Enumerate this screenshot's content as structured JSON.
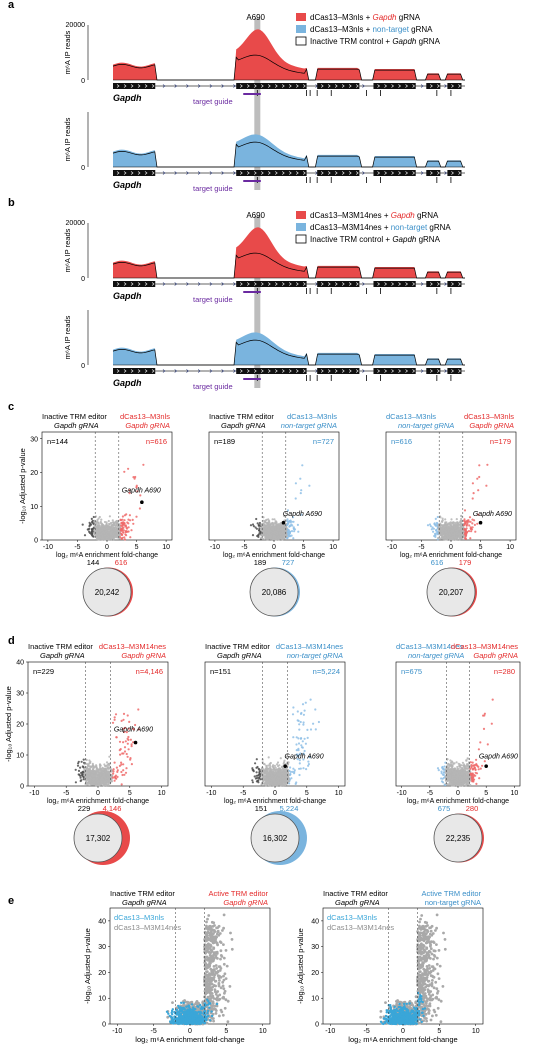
{
  "panels": {
    "a": {
      "letter": "a",
      "marker": "A690",
      "gene": "Gapdh",
      "guide": "target guide",
      "ylabel_top": "m⁶A IP reads",
      "ylabel_bottom": "m⁶A IP reads",
      "yticks_top": [
        "20000",
        "0"
      ],
      "yticks_bottom": [
        "20000",
        "0"
      ],
      "legend": [
        {
          "pre": "dCas13–M3nls + ",
          "em": "Gapdh",
          "post": " gRNA",
          "color": "#e84a4a",
          "emColor": "#e42b2b"
        },
        {
          "pre": "dCas13–M3nls + ",
          "em": "non-target",
          "post": " gRNA",
          "color": "#7ab4de",
          "emColor": "#3a8fc8"
        },
        {
          "pre": "Inactive TRM control + ",
          "em": "Gapdh",
          "post": " gRNA",
          "color": "#ffffff",
          "emColor": "#000000"
        }
      ]
    },
    "b": {
      "letter": "b",
      "marker": "A690",
      "gene": "Gapdh",
      "guide": "target guide",
      "ylabel_top": "m⁶A IP reads",
      "ylabel_bottom": "m⁶A IP reads",
      "yticks_top": [
        "20000",
        "0"
      ],
      "yticks_bottom": [
        "20000",
        "0"
      ],
      "legend": [
        {
          "pre": "dCas13–M3M14nes + ",
          "em": "Gapdh",
          "post": " gRNA",
          "color": "#e84a4a",
          "emColor": "#e42b2b"
        },
        {
          "pre": "dCas13–M3M14nes + ",
          "em": "non-target",
          "post": " gRNA",
          "color": "#7ab4de",
          "emColor": "#3a8fc8"
        },
        {
          "pre": "Inactive TRM control + ",
          "em": "Gapdh",
          "post": " gRNA",
          "color": "#ffffff",
          "emColor": "#000000"
        }
      ]
    },
    "c": {
      "letter": "c",
      "ylabel": "-log₁₀ Adjusted p-value",
      "xlabel": "log₂ m⁶A enrichment fold-change",
      "xticks": [
        "-10",
        "-5",
        "0",
        "5",
        "10"
      ],
      "yticks": [
        "0",
        "10",
        "20",
        "30"
      ],
      "plots": [
        {
          "left1": "Inactive TRM editor",
          "left2": "Gapdh gRNA",
          "right1": "dCas13–M3nls",
          "right2": "Gapdh gRNA",
          "nLeft": "n=144",
          "nRight": "n=616",
          "leftColor": "#444444",
          "rightColor": "#e42b2b",
          "leftTitleColor": "#000000",
          "rightTitleColor": "#e42b2b",
          "label": "Gapdh A690",
          "venn": {
            "left": "144",
            "right": "616",
            "center": "20,242"
          }
        },
        {
          "left1": "Inactive TRM editor",
          "left2": "Gapdh gRNA",
          "right1": "dCas13–M3nls",
          "right2": "non-target gRNA",
          "nLeft": "n=189",
          "nRight": "n=727",
          "leftColor": "#444444",
          "rightColor": "#3a8fc8",
          "leftTitleColor": "#000000",
          "rightTitleColor": "#3a8fc8",
          "label": "Gapdh A690",
          "venn": {
            "left": "189",
            "right": "727",
            "center": "20,086"
          }
        },
        {
          "left1": "dCas13–M3nls",
          "left2": "non-target gRNA",
          "right1": "dCas13–M3nls",
          "right2": "Gapdh gRNA",
          "nLeft": "n=616",
          "nRight": "n=179",
          "leftColor": "#3a8fc8",
          "rightColor": "#e42b2b",
          "leftTitleColor": "#3a8fc8",
          "rightTitleColor": "#e42b2b",
          "label": "Gapdh A690",
          "venn": {
            "left": "616",
            "right": "179",
            "center": "20,207"
          }
        }
      ]
    },
    "d": {
      "letter": "d",
      "ylabel": "-log₁₀ Adjusted p-value",
      "xlabel": "log₂ m⁶A enrichment fold-change",
      "xticks": [
        "-10",
        "-5",
        "0",
        "5",
        "10"
      ],
      "yticks": [
        "0",
        "10",
        "20",
        "30",
        "40"
      ],
      "plots": [
        {
          "left1": "Inactive TRM editor",
          "left2": "Gapdh gRNA",
          "right1": "dCas13–M3M14nes",
          "right2": "Gapdh gRNA",
          "nLeft": "n=229",
          "nRight": "n=4,146",
          "leftColor": "#444444",
          "rightColor": "#e42b2b",
          "leftTitleColor": "#000000",
          "rightTitleColor": "#e42b2b",
          "label": "Gapdh A690",
          "venn": {
            "left": "229",
            "right": "4,146",
            "center": "17,302"
          }
        },
        {
          "left1": "Inactive TRM editor",
          "left2": "Gapdh gRNA",
          "right1": "dCas13–M3M14nes",
          "right2": "non-target gRNA",
          "nLeft": "n=151",
          "nRight": "n=5,224",
          "leftColor": "#444444",
          "rightColor": "#3a8fc8",
          "leftTitleColor": "#000000",
          "rightTitleColor": "#3a8fc8",
          "label": "Gapdh A690",
          "venn": {
            "left": "151",
            "right": "5,224",
            "center": "16,302"
          }
        },
        {
          "left1": "dCas13–M3M14nes",
          "left2": "non-target gRNA",
          "right1": "dCas13–M3M14nes",
          "right2": "Gapdh gRNA",
          "nLeft": "n=675",
          "nRight": "n=280",
          "leftColor": "#3a8fc8",
          "rightColor": "#e42b2b",
          "leftTitleColor": "#3a8fc8",
          "rightTitleColor": "#e42b2b",
          "label": "Gapdh A690",
          "venn": {
            "left": "675",
            "right": "280",
            "center": "22,235"
          }
        }
      ]
    },
    "e": {
      "letter": "e",
      "ylabel": "-log₁₀ Adjusted p-value",
      "xlabel": "log₂ m⁶A enrichment fold-change",
      "xticks": [
        "-10",
        "-5",
        "0",
        "5",
        "10"
      ],
      "yticks": [
        "0",
        "10",
        "20",
        "30",
        "40"
      ],
      "legend": [
        {
          "text": "dCas13–M3nls",
          "color": "#3aa6d8"
        },
        {
          "text": "dCas13–M3M14nes",
          "color": "#8c8c8c"
        }
      ],
      "plots": [
        {
          "left1": "Inactive TRM editor",
          "left2": "Gapdh gRNA",
          "right1": "Active TRM editor",
          "right2": "Gapdh gRNA",
          "rightTitleColor": "#e42b2b"
        },
        {
          "left1": "Inactive TRM editor",
          "left2": "Gapdh gRNA",
          "right1": "Active TRM editor",
          "right2": "non-target gRNA",
          "rightTitleColor": "#3a8fc8"
        }
      ]
    }
  },
  "chart_data": [
    {
      "type": "area",
      "panel": "a",
      "series": [
        {
          "name": "dCas13–M3nls + Gapdh gRNA"
        },
        {
          "name": "dCas13–M3nls + non-target gRNA"
        },
        {
          "name": "Inactive TRM control + Gapdh gRNA"
        }
      ],
      "ylabel": "m⁶A IP reads",
      "ylim": [
        0,
        20000
      ],
      "annotation": "A690"
    },
    {
      "type": "area",
      "panel": "b",
      "series": [
        {
          "name": "dCas13–M3M14nes + Gapdh gRNA"
        },
        {
          "name": "dCas13–M3M14nes + non-target gRNA"
        },
        {
          "name": "Inactive TRM control + Gapdh gRNA"
        }
      ],
      "ylabel": "m⁶A IP reads",
      "ylim": [
        0,
        20000
      ],
      "annotation": "A690"
    },
    {
      "type": "scatter",
      "panel": "c",
      "xlim": [
        -10,
        10
      ],
      "ylim": [
        0,
        32
      ],
      "highlight": "Gapdh A690",
      "counts": [
        {
          "left": 144,
          "right": 616,
          "shared": 20242
        },
        {
          "left": 189,
          "right": 727,
          "shared": 20086
        },
        {
          "left": 616,
          "right": 179,
          "shared": 20207
        }
      ]
    },
    {
      "type": "scatter",
      "panel": "d",
      "xlim": [
        -10,
        10
      ],
      "ylim": [
        0,
        40
      ],
      "highlight": "Gapdh A690",
      "counts": [
        {
          "left": 229,
          "right": 4146,
          "shared": 17302
        },
        {
          "left": 151,
          "right": 5224,
          "shared": 16302
        },
        {
          "left": 675,
          "right": 280,
          "shared": 22235
        }
      ]
    },
    {
      "type": "scatter",
      "panel": "e",
      "xlim": [
        -10,
        10
      ],
      "ylim": [
        0,
        45
      ]
    }
  ]
}
